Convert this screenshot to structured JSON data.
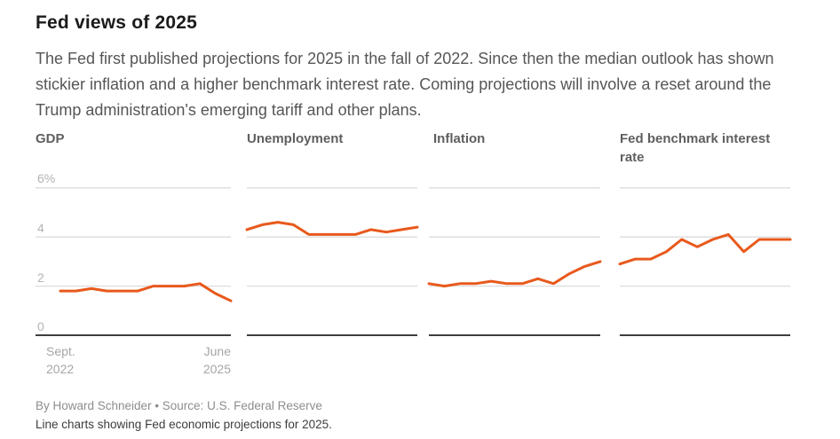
{
  "page": {
    "title": "Fed views of 2025",
    "subtitle": "The Fed first published projections for 2025 in the fall of 2022. Since then the median outlook has shown stickier inflation and a higher benchmark interest rate. Coming projections will involve a reset around the Trump administration's emerging tariff and other plans."
  },
  "colors": {
    "line": "#e8591c",
    "grid": "#dcdcdc",
    "baseline": "#3e3e3e"
  },
  "chart_data": {
    "type": "line",
    "layout": "small-multiples",
    "title": "Fed views of 2025",
    "x_axis": {
      "start_label": "Sept.\n2022",
      "end_label": "June\n2025",
      "n_points": 12,
      "note": "quarterly Fed projection releases from Sept. 2022 to June 2025, only endpoints labeled"
    },
    "y_axis": {
      "ticks": [
        0,
        2,
        4,
        6
      ],
      "tick_labels": [
        "0",
        "2",
        "4",
        "6%"
      ],
      "range": [
        0,
        6.8
      ],
      "unit": "percent",
      "grid": true
    },
    "series": [
      {
        "name": "GDP",
        "values": [
          1.8,
          1.8,
          1.9,
          1.8,
          1.8,
          1.8,
          2.0,
          2.0,
          2.0,
          2.1,
          1.7,
          1.4
        ]
      },
      {
        "name": "Unemployment",
        "values": [
          4.3,
          4.5,
          4.6,
          4.5,
          4.1,
          4.1,
          4.1,
          4.1,
          4.3,
          4.2,
          4.3,
          4.4
        ]
      },
      {
        "name": "Inflation",
        "values": [
          2.1,
          2.0,
          2.1,
          2.1,
          2.2,
          2.1,
          2.1,
          2.3,
          2.1,
          2.5,
          2.8,
          3.0
        ]
      },
      {
        "name": "Fed benchmark interest rate",
        "values": [
          2.9,
          3.1,
          3.1,
          3.4,
          3.9,
          3.6,
          3.9,
          4.1,
          3.4,
          3.9,
          3.9,
          3.9
        ]
      }
    ]
  },
  "footer": {
    "byline": "By Howard Schneider • Source: U.S. Federal Reserve",
    "caption": "Line charts showing Fed economic projections for 2025."
  }
}
